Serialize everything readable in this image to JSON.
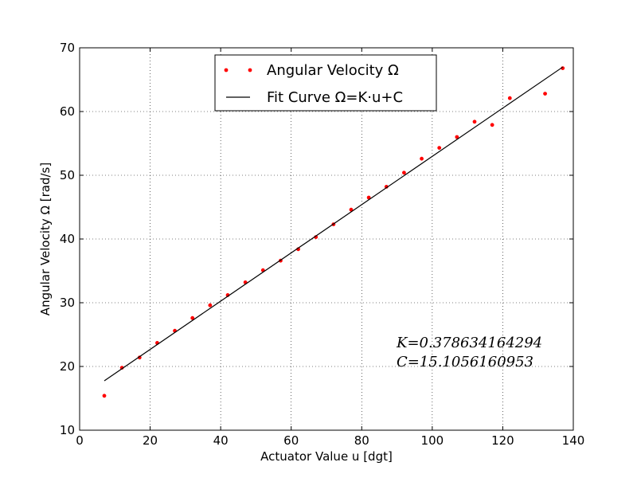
{
  "chart_data": {
    "type": "scatter",
    "xlabel": "Actuator Value u [dgt]",
    "ylabel": "Angular Velocity Ω [rad/s]",
    "xlim": [
      0,
      140
    ],
    "ylim": [
      10,
      70
    ],
    "xticks": [
      "0",
      "20",
      "40",
      "60",
      "80",
      "100",
      "120",
      "140"
    ],
    "yticks": [
      "10",
      "20",
      "30",
      "40",
      "50",
      "60",
      "70"
    ],
    "grid": true,
    "legend_position": "top-center",
    "series": [
      {
        "name": "Angular Velocity Ω",
        "kind": "points",
        "color": "#ff0000",
        "x": [
          7,
          12,
          17,
          22,
          27,
          32,
          37,
          42,
          47,
          52,
          57,
          62,
          67,
          72,
          77,
          82,
          87,
          92,
          97,
          102,
          107,
          112,
          117,
          122,
          132,
          137
        ],
        "y": [
          15.4,
          19.8,
          21.4,
          23.7,
          25.6,
          27.6,
          29.6,
          31.2,
          33.2,
          35.1,
          36.6,
          38.4,
          40.3,
          42.3,
          44.6,
          46.5,
          48.2,
          50.4,
          52.6,
          54.3,
          56.0,
          58.4,
          57.9,
          62.1,
          62.8,
          66.8
        ]
      },
      {
        "name": "Fit Curve Ω=K·u+C",
        "kind": "line",
        "color": "#000000",
        "x": [
          7,
          137
        ],
        "y": [
          17.755,
          66.977
        ]
      }
    ],
    "annotations": [
      "K=0.378634164294",
      "C=15.1056160953"
    ]
  }
}
